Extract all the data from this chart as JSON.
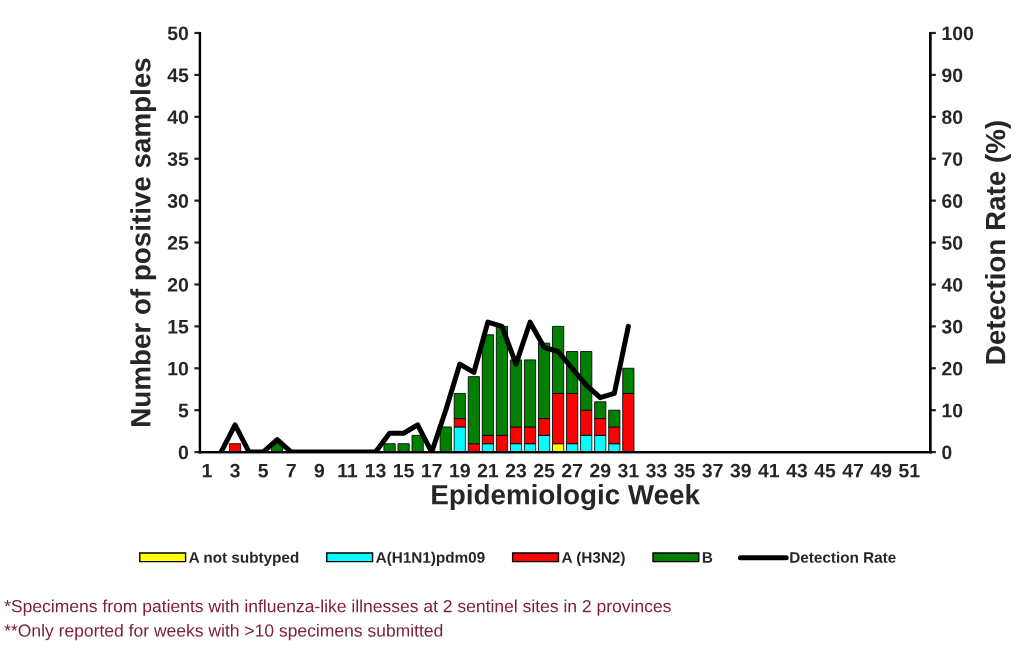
{
  "chart_data": {
    "type": "bar",
    "stacked": true,
    "xlabel": "Epidemiologic Week",
    "ylabel": "Number of positive samples",
    "y2label": "Detection Rate (%)",
    "categories": [
      "1",
      null,
      "3",
      null,
      "5",
      null,
      "7",
      null,
      "9",
      null,
      "11",
      null,
      "13",
      null,
      "15",
      null,
      "17",
      null,
      "19",
      null,
      "21",
      null,
      "23",
      null,
      "25",
      null,
      "27",
      null,
      "29",
      null,
      "31",
      null,
      "33",
      null,
      "35",
      null,
      "37",
      null,
      "39",
      null,
      "41",
      null,
      "43",
      null,
      "45",
      null,
      "47",
      null,
      "49",
      null,
      "51",
      null
    ],
    "series": [
      {
        "name": "A not subtyped",
        "color": "#ffff00",
        "values": [
          0,
          0,
          0,
          0,
          0,
          0,
          0,
          0,
          0,
          0,
          0,
          0,
          0,
          0,
          0,
          0,
          0,
          0,
          0,
          0,
          0,
          0,
          0,
          0,
          0,
          1,
          0,
          0,
          0,
          0,
          0,
          null,
          null,
          null,
          null,
          null,
          null,
          null,
          null,
          null,
          null,
          null,
          null,
          null,
          null,
          null,
          null,
          null,
          null,
          null,
          null,
          null
        ]
      },
      {
        "name": "A(H1N1)pdm09",
        "color": "#00ffff",
        "values": [
          0,
          0,
          0,
          0,
          0,
          0,
          0,
          0,
          0,
          0,
          0,
          0,
          0,
          0,
          0,
          0,
          0,
          0,
          3,
          0,
          1,
          0,
          1,
          1,
          2,
          0,
          1,
          2,
          2,
          1,
          0,
          null,
          null,
          null,
          null,
          null,
          null,
          null,
          null,
          null,
          null,
          null,
          null,
          null,
          null,
          null,
          null,
          null,
          null,
          null,
          null,
          null
        ]
      },
      {
        "name": "A (H3N2)",
        "color": "#ff0000",
        "values": [
          0,
          0,
          1,
          0,
          0,
          0,
          0,
          0,
          0,
          0,
          0,
          0,
          0,
          0,
          0,
          0,
          0,
          0,
          1,
          1,
          1,
          2,
          2,
          2,
          2,
          6,
          6,
          3,
          2,
          2,
          7,
          null,
          null,
          null,
          null,
          null,
          null,
          null,
          null,
          null,
          null,
          null,
          null,
          null,
          null,
          null,
          null,
          null,
          null,
          null,
          null,
          null
        ]
      },
      {
        "name": "B",
        "color": "#007f00",
        "values": [
          0,
          0,
          0,
          0,
          0,
          1,
          0,
          0,
          0,
          0,
          0,
          0,
          0,
          1,
          1,
          2,
          0,
          3,
          3,
          8,
          12,
          13,
          8,
          8,
          9,
          8,
          5,
          7,
          2,
          2,
          3,
          null,
          null,
          null,
          null,
          null,
          null,
          null,
          null,
          null,
          null,
          null,
          null,
          null,
          null,
          null,
          null,
          null,
          null,
          null,
          null,
          null
        ]
      },
      {
        "name": "Detection Rate",
        "type": "line",
        "axis": "y2",
        "color": "#000000",
        "values": [
          null,
          0,
          6.5,
          0,
          0,
          3,
          0,
          0,
          0,
          0,
          0,
          0,
          0,
          4.5,
          4.5,
          6.5,
          0,
          10,
          21,
          19,
          31,
          30,
          21,
          31,
          25,
          24,
          20,
          16,
          13,
          14,
          30,
          null,
          null,
          null,
          null,
          null,
          null,
          null,
          null,
          null,
          null,
          null,
          null,
          null,
          null,
          null,
          null,
          null,
          null,
          null,
          null,
          null
        ]
      }
    ],
    "ylim": [
      0,
      50
    ],
    "yticks": [
      0,
      5,
      10,
      15,
      20,
      25,
      30,
      35,
      40,
      45,
      50
    ],
    "y2lim": [
      0,
      100
    ],
    "y2ticks": [
      0,
      10,
      20,
      30,
      40,
      50,
      60,
      70,
      80,
      90,
      100
    ],
    "grid": false,
    "legend": "bottom",
    "line_style": "solid",
    "marker": "none",
    "annotations": [
      "*Specimens from patients with influenza-like illnesses at 2 sentinel sites in 2 provinces",
      "**Only reported for weeks with >10 specimens submitted"
    ]
  }
}
